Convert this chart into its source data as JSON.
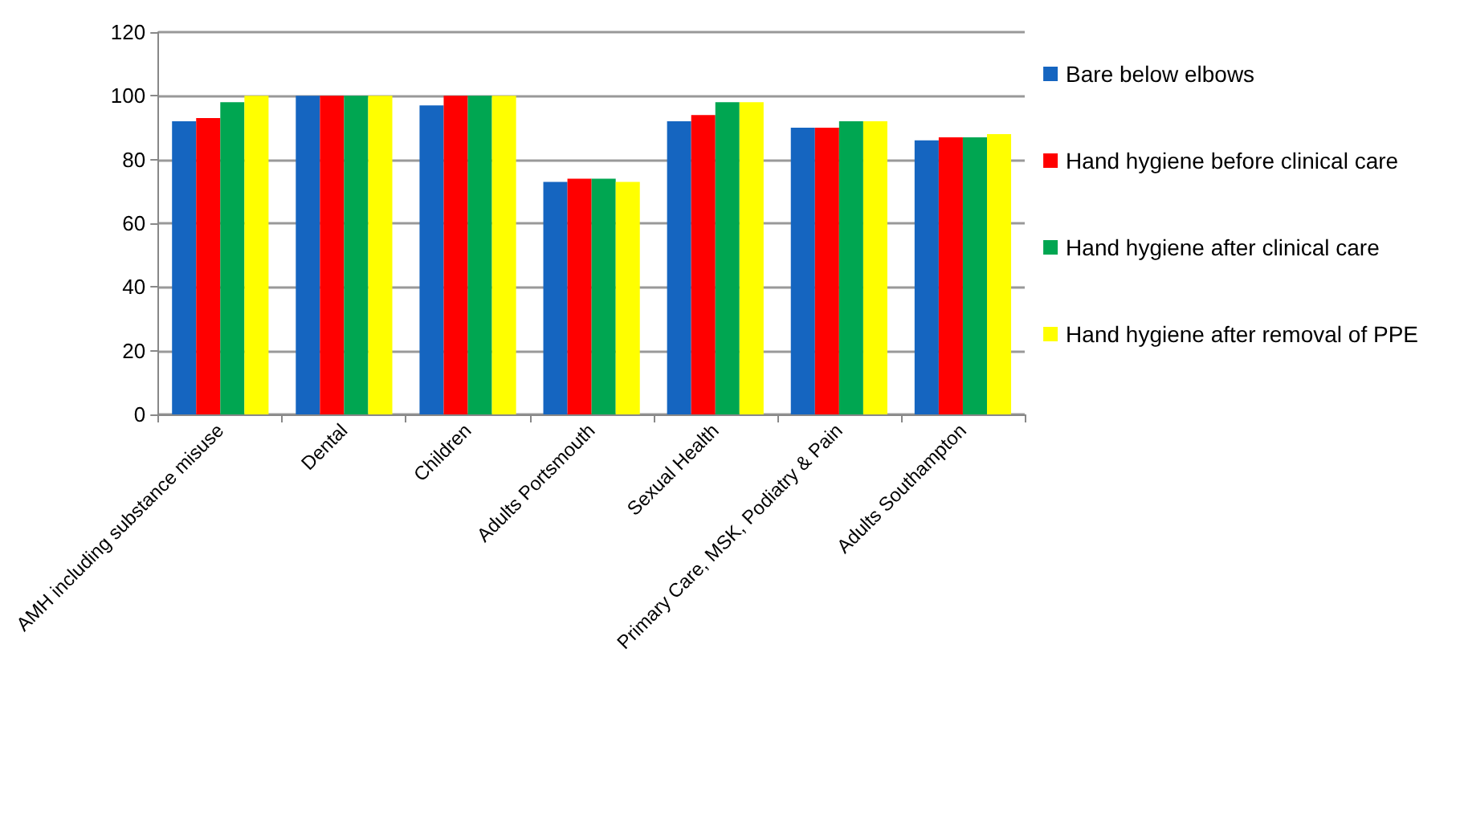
{
  "chart_data": {
    "type": "bar",
    "categories": [
      "AMH including substance misuse",
      "Dental",
      "Children",
      "Adults Portsmouth",
      "Sexual Health",
      "Primary Care, MSK, Podiatry & Pain",
      "Adults Southampton"
    ],
    "series": [
      {
        "name": "Bare below elbows",
        "color": "#1565c0",
        "values": [
          92,
          100,
          97,
          73,
          92,
          90,
          86
        ]
      },
      {
        "name": "Hand hygiene before clinical care",
        "color": "#ff0000",
        "values": [
          93,
          100,
          100,
          74,
          94,
          90,
          87
        ]
      },
      {
        "name": "Hand hygiene after clinical care",
        "color": "#00a651",
        "values": [
          98,
          100,
          100,
          74,
          98,
          92,
          87
        ]
      },
      {
        "name": "Hand hygiene after removal of PPE",
        "color": "#ffff00",
        "values": [
          100,
          100,
          100,
          73,
          98,
          92,
          88
        ]
      }
    ],
    "ylim": [
      0,
      120
    ],
    "yticks": [
      0,
      20,
      40,
      60,
      80,
      100,
      120
    ],
    "grid": "y",
    "legend": "right"
  }
}
